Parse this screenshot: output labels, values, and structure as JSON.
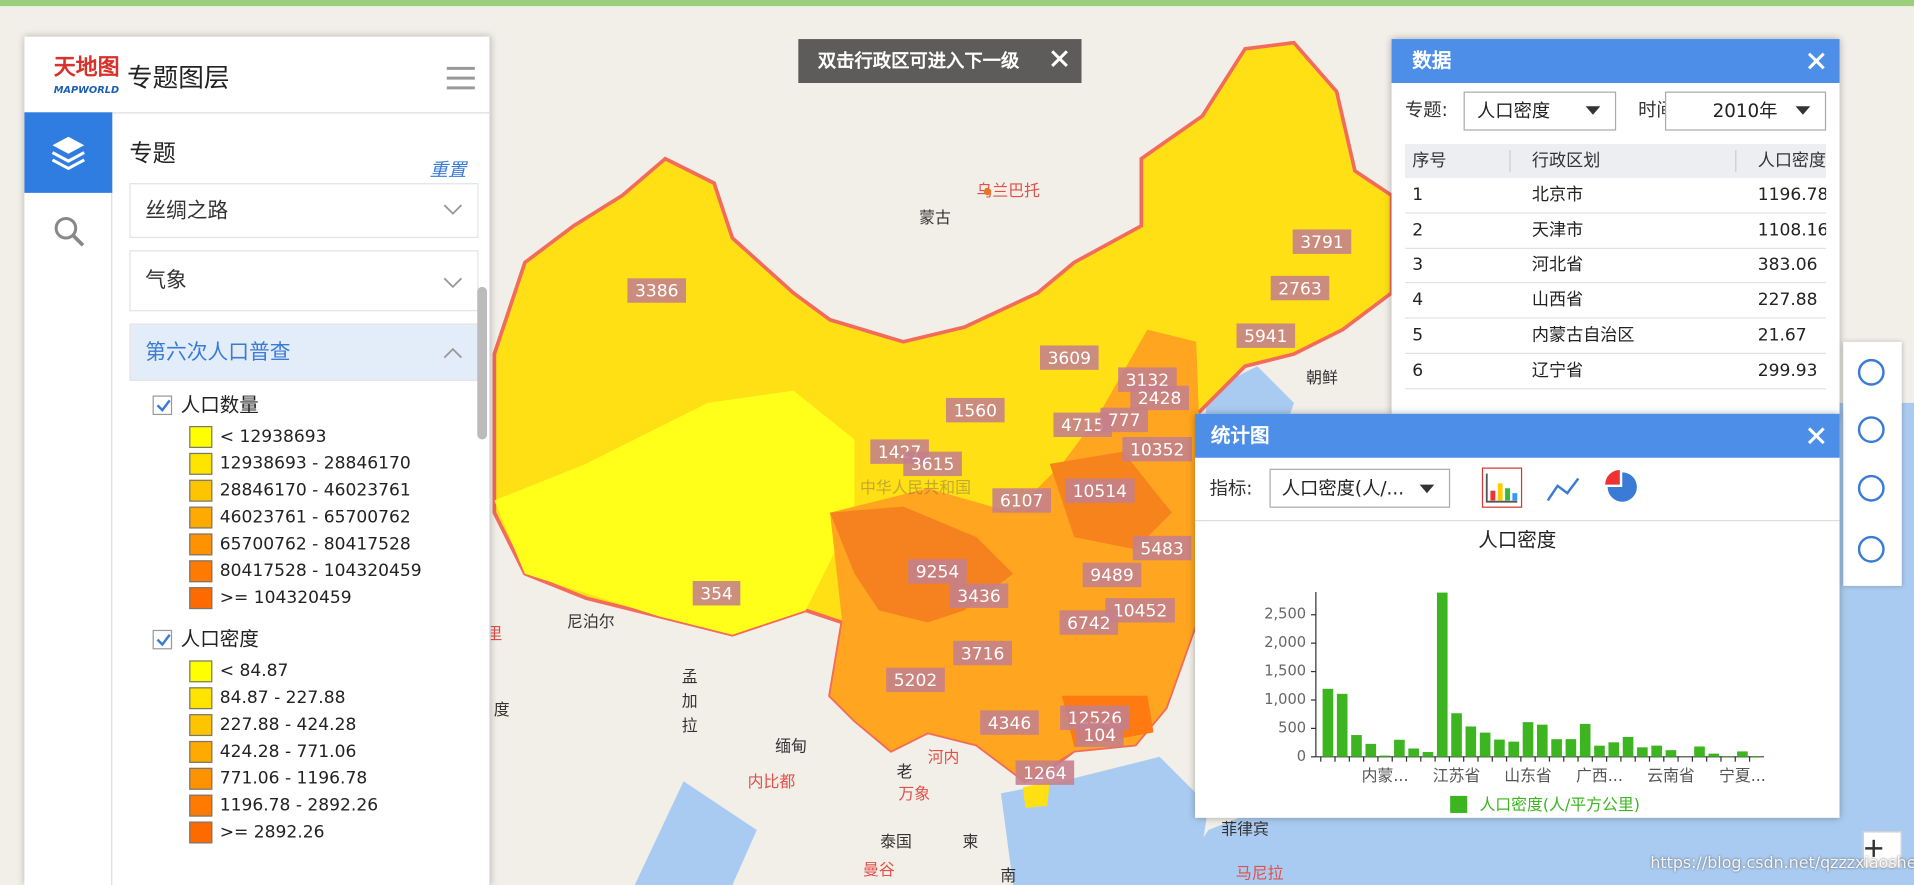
{
  "map_popup": "双击行政区可进入下一级",
  "place_labels": [
    "乌兰巴托",
    "蒙古",
    "朝鲜",
    "尼泊尔",
    "孟",
    "加",
    "拉",
    "缅甸",
    "老",
    "泰国",
    "柬",
    "南",
    "菲律宾",
    "马尼拉",
    "河内",
    "万象",
    "内比都",
    "曼谷",
    "中华人民共和国",
    "度",
    "里"
  ],
  "region_values": [
    3386,
    3791,
    2763,
    5941,
    3609,
    3132,
    2428,
    1560,
    4715,
    777,
    1427,
    3615,
    10352,
    6107,
    10514,
    5483,
    9254,
    9489,
    3436,
    10452,
    354,
    6742,
    3716,
    5202,
    4346,
    12526,
    104,
    1264
  ],
  "left_panel": {
    "logo": "天地图",
    "logo_sub": "MAPWORLD",
    "title": "专题图层",
    "tab": "专题",
    "reset": "重置",
    "sections": [
      "丝绸之路",
      "气象",
      "第六次人口普查"
    ],
    "class_colors": [
      "#ffff00",
      "#ffe400",
      "#ffc400",
      "#ffaa00",
      "#ff9200",
      "#ff7a00",
      "#ff6a00"
    ],
    "layers": [
      {
        "name": "人口数量",
        "classes": [
          "< 12938693",
          "12938693 - 28846170",
          "28846170 - 46023761",
          "46023761 - 65700762",
          "65700762 - 80417528",
          "80417528 - 104320459",
          ">= 104320459"
        ]
      },
      {
        "name": "人口密度",
        "classes": [
          "< 84.87",
          "84.87 - 227.88",
          "227.88 - 424.28",
          "424.28 - 771.06",
          "771.06 - 1196.78",
          "1196.78 - 2892.26",
          ">= 2892.26"
        ]
      }
    ]
  },
  "data_panel": {
    "title": "数据",
    "topic_label": "专题:",
    "topic": "人口密度",
    "time_label": "时间:",
    "time": "2010年",
    "table": {
      "header": [
        "序号",
        "行政区划",
        "人口密度"
      ],
      "rows": [
        [
          1,
          "北京市",
          1196.78
        ],
        [
          2,
          "天津市",
          1108.16
        ],
        [
          3,
          "河北省",
          383.06
        ],
        [
          4,
          "山西省",
          227.88
        ],
        [
          5,
          "内蒙古自治区",
          21.67
        ],
        [
          6,
          "辽宁省",
          299.93
        ]
      ]
    }
  },
  "chart_panel": {
    "title": "统计图",
    "indicator_label": "指标:",
    "indicator": "人口密度(人/...",
    "chart_data": {
      "type": "bar",
      "title": "人口密度",
      "categories": [
        null,
        null,
        null,
        null,
        "内蒙...",
        null,
        null,
        null,
        null,
        "江苏省",
        null,
        null,
        null,
        null,
        "山东省",
        null,
        null,
        null,
        null,
        "广西...",
        null,
        null,
        null,
        null,
        "云南省",
        null,
        null,
        null,
        null,
        "宁夏...",
        null
      ],
      "series": [
        {
          "name": "人口密度(人/平方公里)",
          "color": "#3cb521",
          "values": [
            1196.78,
            1108.16,
            383.06,
            227.88,
            21.67,
            299.93,
            146,
            84,
            2890,
            767,
            534,
            426,
            303,
            267,
            610,
            566,
            310,
            311,
            579,
            196,
            255,
            350,
            167,
            197,
            117,
            3,
            181,
            56,
            8,
            95,
            13
          ]
        }
      ],
      "ylim": [
        0,
        2900
      ],
      "yticks": [
        0,
        500,
        {
          "value": 1000,
          "label": "1,000"
        },
        {
          "value": 1500,
          "label": "1,500"
        },
        {
          "value": 2000,
          "label": "2,000"
        },
        {
          "value": 2500,
          "label": "2,500"
        }
      ]
    }
  },
  "watermark": "https://blog.csdn.net/qzzzxiaosheng"
}
